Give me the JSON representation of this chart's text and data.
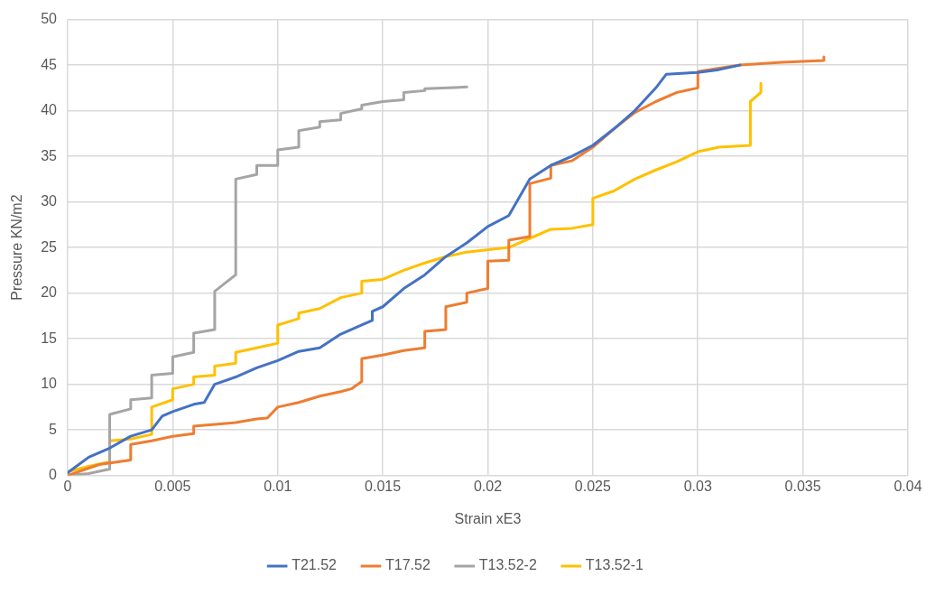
{
  "chart_data": {
    "type": "line",
    "xlabel": "Strain xE3",
    "ylabel": "Pressure KN/m2",
    "xlim": [
      0,
      0.04
    ],
    "xticks": [
      0,
      0.005,
      0.01,
      0.015,
      0.02,
      0.025,
      0.03,
      0.035,
      0.04
    ],
    "ylim": [
      0,
      50
    ],
    "yticks": [
      0,
      5,
      10,
      15,
      20,
      25,
      30,
      35,
      40,
      45,
      50
    ],
    "grid": true,
    "legend": "bottom",
    "marker": "none",
    "line_style": "solid",
    "series": [
      {
        "name": "T21.52",
        "color": "#4472c4",
        "x": [
          0,
          0.001,
          0.002,
          0.003,
          0.004,
          0.0045,
          0.005,
          0.006,
          0.0065,
          0.007,
          0.008,
          0.009,
          0.01,
          0.011,
          0.012,
          0.013,
          0.014,
          0.0145,
          0.0145,
          0.015,
          0.016,
          0.017,
          0.018,
          0.019,
          0.02,
          0.021,
          0.022,
          0.023,
          0.024,
          0.025,
          0.026,
          0.027,
          0.028,
          0.0285,
          0.03,
          0.031,
          0.032
        ],
        "values": [
          0.3,
          2,
          3,
          4.3,
          5,
          6.5,
          7,
          7.8,
          8,
          10,
          10.8,
          11.8,
          12.6,
          13.6,
          14,
          15.5,
          16.5,
          17,
          18,
          18.5,
          20.5,
          22,
          24,
          25.5,
          27.3,
          28.5,
          32.5,
          34,
          35,
          36.2,
          38,
          40,
          42.5,
          44,
          44.2,
          44.5,
          45
        ]
      },
      {
        "name": "T17.52",
        "color": "#ed7d31",
        "x": [
          0,
          0.001,
          0.0015,
          0.003,
          0.003,
          0.004,
          0.005,
          0.006,
          0.006,
          0.008,
          0.009,
          0.0095,
          0.01,
          0.011,
          0.012,
          0.013,
          0.0135,
          0.014,
          0.014,
          0.015,
          0.016,
          0.017,
          0.017,
          0.018,
          0.018,
          0.019,
          0.019,
          0.02,
          0.02,
          0.021,
          0.021,
          0.022,
          0.022,
          0.023,
          0.023,
          0.024,
          0.025,
          0.026,
          0.027,
          0.028,
          0.029,
          0.03,
          0.03,
          0.032,
          0.034,
          0.036,
          0.036
        ],
        "values": [
          0,
          0.8,
          1.2,
          1.7,
          3.4,
          3.8,
          4.3,
          4.6,
          5.4,
          5.8,
          6.2,
          6.3,
          7.5,
          8,
          8.7,
          9.2,
          9.5,
          10.3,
          12.8,
          13.2,
          13.7,
          14,
          15.8,
          16,
          18.5,
          19,
          20,
          20.5,
          23.5,
          23.6,
          25.8,
          26.2,
          32,
          32.6,
          34,
          34.5,
          36,
          38,
          39.8,
          41,
          42,
          42.5,
          44.3,
          45,
          45.3,
          45.5,
          45.9
        ]
      },
      {
        "name": "T13.52-2",
        "color": "#a5a5a5",
        "x": [
          0,
          0.001,
          0.002,
          0.002,
          0.003,
          0.003,
          0.004,
          0.004,
          0.005,
          0.005,
          0.006,
          0.006,
          0.007,
          0.007,
          0.008,
          0.008,
          0.009,
          0.009,
          0.01,
          0.01,
          0.011,
          0.011,
          0.012,
          0.012,
          0.013,
          0.013,
          0.014,
          0.014,
          0.015,
          0.016,
          0.016,
          0.017,
          0.017,
          0.019
        ],
        "values": [
          0,
          0.2,
          0.7,
          6.7,
          7.3,
          8.3,
          8.5,
          11,
          11.2,
          13,
          13.5,
          15.6,
          16,
          20.2,
          22,
          32.5,
          33,
          34,
          34,
          35.7,
          36,
          37.8,
          38.2,
          38.8,
          39,
          39.7,
          40.2,
          40.6,
          41,
          41.2,
          42,
          42.2,
          42.4,
          42.6
        ]
      },
      {
        "name": "T13.52-1",
        "color": "#ffc000",
        "x": [
          0,
          0.001,
          0.002,
          0.002,
          0.003,
          0.004,
          0.004,
          0.005,
          0.005,
          0.006,
          0.006,
          0.007,
          0.007,
          0.008,
          0.008,
          0.009,
          0.01,
          0.01,
          0.011,
          0.011,
          0.012,
          0.013,
          0.014,
          0.014,
          0.015,
          0.016,
          0.017,
          0.018,
          0.019,
          0.021,
          0.022,
          0.023,
          0.024,
          0.025,
          0.025,
          0.026,
          0.027,
          0.028,
          0.029,
          0.03,
          0.031,
          0.0325,
          0.0325,
          0.033,
          0.033
        ],
        "values": [
          0.4,
          1,
          1.5,
          3.8,
          4,
          4.5,
          7.5,
          8.3,
          9.5,
          10,
          10.8,
          11,
          12,
          12.3,
          13.5,
          14,
          14.5,
          16.5,
          17.2,
          17.8,
          18.3,
          19.5,
          20,
          21.3,
          21.5,
          22.5,
          23.3,
          24,
          24.5,
          25,
          26,
          27,
          27.1,
          27.5,
          30.4,
          31.2,
          32.5,
          33.5,
          34.4,
          35.5,
          36,
          36.2,
          41,
          42,
          43
        ]
      }
    ]
  }
}
